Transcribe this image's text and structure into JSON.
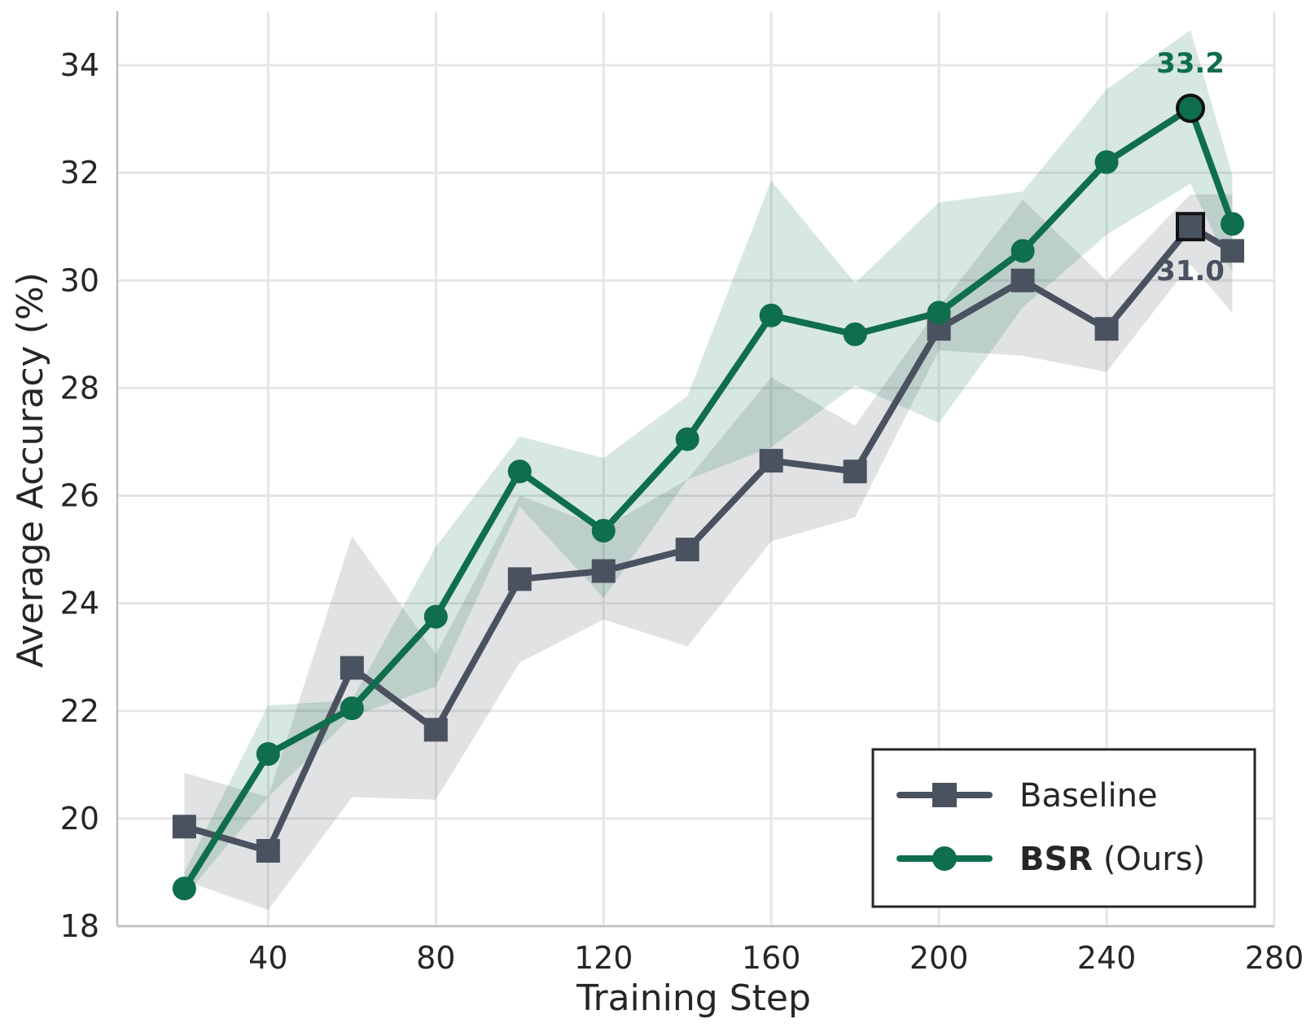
{
  "chart_data": {
    "type": "line",
    "xlabel": "Training Step",
    "ylabel": "Average Accuracy (%)",
    "xlim": [
      4,
      280
    ],
    "ylim": [
      18,
      35
    ],
    "xticks": [
      40,
      80,
      120,
      160,
      200,
      240,
      280
    ],
    "yticks": [
      18,
      20,
      22,
      24,
      26,
      28,
      30,
      32,
      34
    ],
    "grid": true,
    "legend_position": "bottom-right",
    "x": [
      20,
      40,
      60,
      80,
      100,
      120,
      140,
      160,
      180,
      200,
      220,
      240,
      260,
      270
    ],
    "series": [
      {
        "name": "Baseline",
        "color": "#4a5260",
        "marker": "square",
        "values": [
          19.85,
          19.4,
          22.8,
          21.65,
          24.45,
          24.6,
          25.0,
          26.65,
          26.45,
          29.1,
          30.0,
          29.1,
          31.0,
          30.55
        ],
        "band_upper": [
          20.85,
          20.4,
          25.25,
          23.05,
          26.0,
          25.4,
          26.3,
          28.2,
          27.3,
          29.5,
          31.5,
          30.0,
          31.6,
          31.6
        ],
        "band_lower": [
          18.85,
          18.3,
          20.4,
          20.35,
          22.9,
          23.7,
          23.2,
          25.15,
          25.6,
          28.7,
          28.6,
          28.3,
          30.3,
          29.4
        ]
      },
      {
        "name_bold": "BSR",
        "name_suffix": " (Ours)",
        "color": "#0f6e4c",
        "marker": "circle",
        "values": [
          18.7,
          21.2,
          22.05,
          23.75,
          26.45,
          25.35,
          27.05,
          29.35,
          29.0,
          29.4,
          30.55,
          32.2,
          33.2,
          31.05
        ],
        "band_upper": [
          19.0,
          22.1,
          22.2,
          25.05,
          27.1,
          26.7,
          27.85,
          31.85,
          29.95,
          31.45,
          31.65,
          33.55,
          34.65,
          31.95
        ],
        "band_lower": [
          18.55,
          20.4,
          21.9,
          22.45,
          25.8,
          24.1,
          26.3,
          26.9,
          28.05,
          27.35,
          29.5,
          30.85,
          31.8,
          30.15
        ]
      }
    ],
    "annotations": [
      {
        "text": "33.2",
        "series": 1,
        "x": 260,
        "y": 33.2,
        "position": "above"
      },
      {
        "text": "31.0",
        "series": 0,
        "x": 260,
        "y": 31.0,
        "position": "below"
      }
    ]
  }
}
